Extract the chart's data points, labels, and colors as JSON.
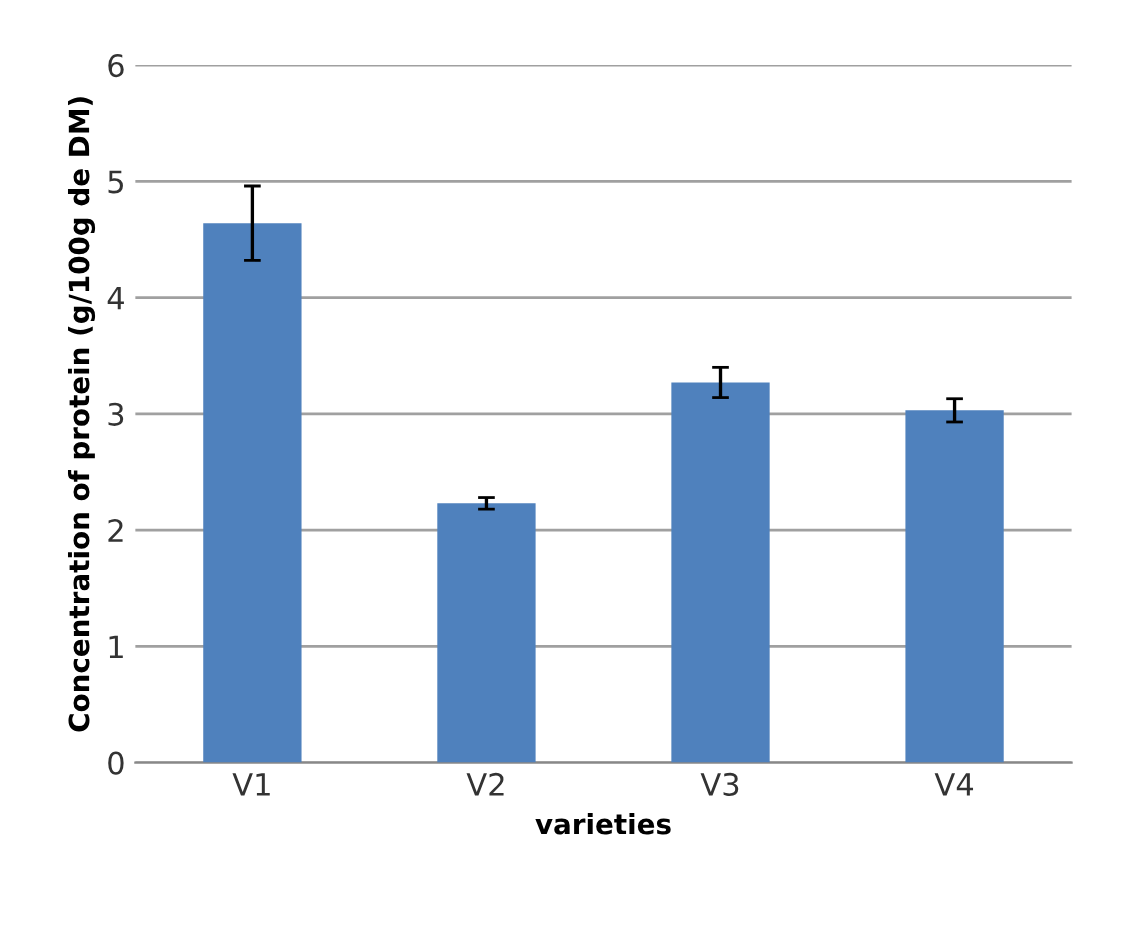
{
  "chart_data": {
    "type": "bar",
    "xlabel": "varieties",
    "ylabel": "Concentration of protein (g/100g de DM)",
    "categories": [
      "V1",
      "V2",
      "V3",
      "V4"
    ],
    "values": [
      4.64,
      2.23,
      3.27,
      3.03
    ],
    "errors": [
      0.32,
      0.05,
      0.13,
      0.1
    ],
    "color": "#4f81bd",
    "ylim": [
      0,
      6
    ],
    "yticks": [
      0,
      1,
      2,
      3,
      4,
      5,
      6
    ],
    "grid": "y"
  }
}
